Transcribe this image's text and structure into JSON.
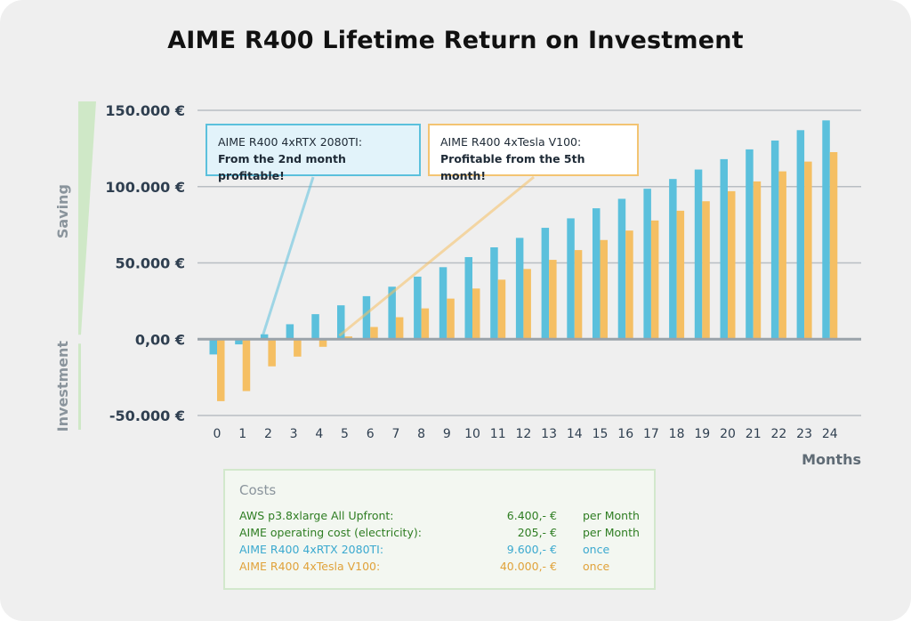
{
  "chart_data": {
    "type": "bar",
    "title": "AIME R400 Lifetime Return on Investment",
    "xlabel": "Months",
    "ylabel": "",
    "categories": [
      "0",
      "1",
      "2",
      "3",
      "4",
      "5",
      "6",
      "7",
      "8",
      "9",
      "10",
      "11",
      "12",
      "13",
      "14",
      "15",
      "16",
      "17",
      "18",
      "19",
      "20",
      "21",
      "22",
      "23",
      "24"
    ],
    "series": [
      {
        "name": "AIME R400 4xRTX 2080TI",
        "color": "#5bc0dc",
        "values": [
          -10000,
          -3400,
          3200,
          9800,
          16400,
          22200,
          28200,
          34400,
          41000,
          47200,
          53800,
          60200,
          66400,
          73000,
          79200,
          85800,
          92000,
          98600,
          105000,
          111200,
          118000,
          124400,
          130200,
          137000,
          143400
        ]
      },
      {
        "name": "AIME R400 4xTesla V100",
        "color": "#f5bf63",
        "values": [
          -40600,
          -34000,
          -17800,
          -11400,
          -5000,
          1800,
          8000,
          14400,
          20200,
          26600,
          33200,
          39000,
          46000,
          52000,
          58400,
          65000,
          71200,
          77800,
          84200,
          90400,
          97000,
          103400,
          110000,
          116400,
          122600
        ]
      }
    ],
    "ylim": [
      -50000,
      150000
    ],
    "yticks": [
      {
        "value": 150000,
        "label": "150.000 €"
      },
      {
        "value": 100000,
        "label": "100.000 €"
      },
      {
        "value": 50000,
        "label": "50.000 €"
      },
      {
        "value": 0,
        "label": "0,00 €"
      },
      {
        "value": -50000,
        "label": "-50.000 €"
      }
    ],
    "grid": true,
    "zero_line_color": "#9aa3aa",
    "grid_color": "#b8bec3",
    "side_labels": {
      "top": "Saving",
      "bottom": "Investment"
    },
    "annotations": [
      {
        "id": "rtx",
        "line1": "AIME R400 4xRTX 2080TI:",
        "line2": "From the 2nd month profitable!",
        "target_month": 2,
        "target_value": 0,
        "color": "#5bc0dc"
      },
      {
        "id": "tesla",
        "line1": "AIME R400 4xTesla V100:",
        "line2": "Profitable from the 5th month!",
        "target_month": 5,
        "target_value": 0,
        "color": "#f5bf63"
      }
    ]
  },
  "costs": {
    "title": "Costs",
    "rows": [
      {
        "label": "AWS p3.8xlarge  All Upfront:",
        "amount": "6.400,- €",
        "unit": "per Month",
        "color": "#2e7d22"
      },
      {
        "label": "AIME operating cost (electricity):",
        "amount": "205,- €",
        "unit": "per Month",
        "color": "#2e7d22"
      },
      {
        "label": "AIME R400 4xRTX 2080TI:",
        "amount": "9.600,- €",
        "unit": "once",
        "color": "#3ba9cf"
      },
      {
        "label": "AIME R400 4xTesla V100:",
        "amount": "40.000,- €",
        "unit": "once",
        "color": "#e0a23a"
      }
    ]
  }
}
